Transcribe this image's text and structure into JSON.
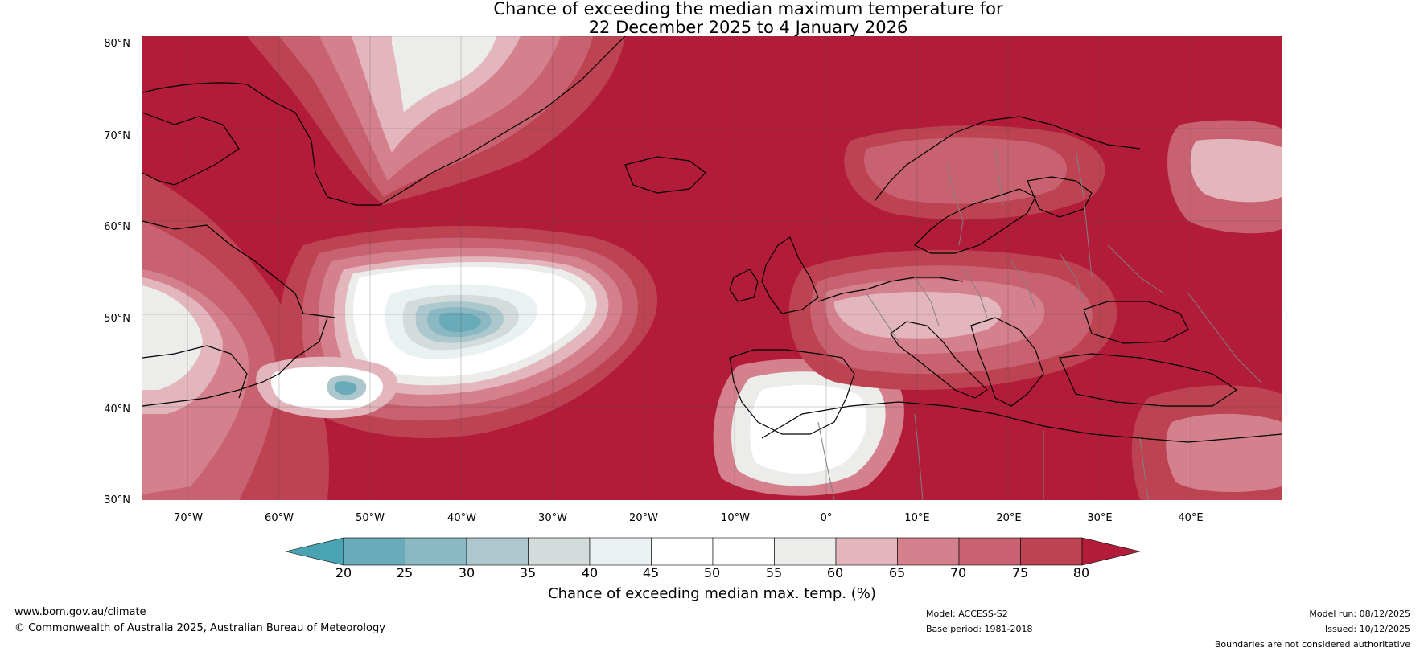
{
  "title": {
    "line1": "Chance of exceeding the median maximum temperature for",
    "line2": "22 December 2025 to 4 January 2026"
  },
  "map": {
    "lat_labels": [
      "80°N",
      "70°N",
      "60°N",
      "50°N",
      "40°N",
      "30°N"
    ],
    "lon_labels": [
      "70°W",
      "60°W",
      "50°W",
      "40°W",
      "30°W",
      "20°W",
      "10°W",
      "0°",
      "10°E",
      "20°E",
      "30°E",
      "40°E"
    ]
  },
  "colorbar": {
    "ticks": [
      "20",
      "25",
      "30",
      "35",
      "40",
      "45",
      "50",
      "55",
      "60",
      "65",
      "70",
      "75",
      "80"
    ],
    "colors": [
      "#4aa3b2",
      "#6aabb9",
      "#8ab9c4",
      "#adc8cd",
      "#d3dbdb",
      "#eaf1f2",
      "#ffffff",
      "#ffffff",
      "#ececea",
      "#e3b6bd",
      "#d4808d",
      "#c96270",
      "#bd4353",
      "#b21c38"
    ],
    "title": "Chance of exceeding median max. temp. (%)"
  },
  "footer": {
    "website": "www.bom.gov.au/climate",
    "copyright": "© Commonwealth of Australia 2025, Australian Bureau of Meteorology",
    "model": "Model: ACCESS-S2",
    "base_period": "Base period: 1981-2018",
    "model_run": "Model run: 08/12/2025",
    "issued": "Issued: 10/12/2025",
    "disclaimer": "Boundaries are not considered authoritative"
  }
}
